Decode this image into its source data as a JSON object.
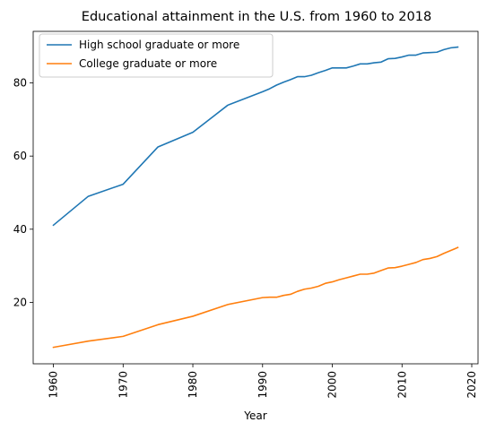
{
  "chart_data": {
    "type": "line",
    "title": "Educational attainment in the U.S. from 1960 to 2018",
    "xlabel": "Year",
    "ylabel": "",
    "xlim": [
      1957.1,
      2020.9
    ],
    "ylim": [
      3.2,
      94.1
    ],
    "x_ticks": [
      1960,
      1970,
      1980,
      1990,
      2000,
      2010,
      2020
    ],
    "y_ticks": [
      20,
      40,
      60,
      80
    ],
    "x_tick_rotation": 90,
    "legend_position": "upper-left",
    "grid": false,
    "series": [
      {
        "name": "High school graduate or more",
        "color": "#1f77b4",
        "x": [
          1960,
          1965,
          1970,
          1975,
          1980,
          1985,
          1990,
          1991,
          1992,
          1993,
          1994,
          1995,
          1996,
          1997,
          1998,
          1999,
          2000,
          2001,
          2002,
          2003,
          2004,
          2005,
          2006,
          2007,
          2008,
          2009,
          2010,
          2011,
          2012,
          2013,
          2014,
          2015,
          2016,
          2017,
          2018
        ],
        "values": [
          41.1,
          49.0,
          52.3,
          62.5,
          66.5,
          73.9,
          77.6,
          78.4,
          79.4,
          80.2,
          80.9,
          81.7,
          81.7,
          82.1,
          82.8,
          83.4,
          84.1,
          84.1,
          84.1,
          84.6,
          85.2,
          85.2,
          85.5,
          85.7,
          86.6,
          86.7,
          87.1,
          87.6,
          87.6,
          88.2,
          88.3,
          88.4,
          89.1,
          89.6,
          89.8
        ]
      },
      {
        "name": "College graduate or more",
        "color": "#ff7f0e",
        "x": [
          1960,
          1965,
          1970,
          1975,
          1980,
          1985,
          1990,
          1991,
          1992,
          1993,
          1994,
          1995,
          1996,
          1997,
          1998,
          1999,
          2000,
          2001,
          2002,
          2003,
          2004,
          2005,
          2006,
          2007,
          2008,
          2009,
          2010,
          2011,
          2012,
          2013,
          2014,
          2015,
          2016,
          2017,
          2018
        ],
        "values": [
          7.7,
          9.4,
          10.7,
          13.9,
          16.2,
          19.4,
          21.3,
          21.4,
          21.4,
          21.9,
          22.2,
          23.0,
          23.6,
          23.9,
          24.4,
          25.2,
          25.6,
          26.2,
          26.7,
          27.2,
          27.7,
          27.7,
          28.0,
          28.7,
          29.4,
          29.5,
          29.9,
          30.4,
          30.9,
          31.7,
          32.0,
          32.5,
          33.4,
          34.2,
          35.0
        ]
      }
    ]
  }
}
